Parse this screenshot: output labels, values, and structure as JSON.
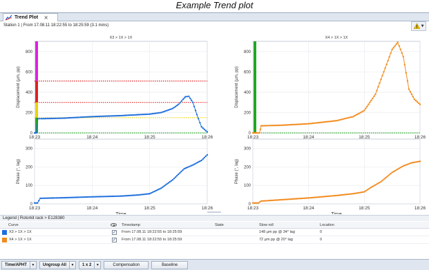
{
  "page_title": "Example Trend plot",
  "tab": {
    "label": "Trend Plot",
    "close": "×"
  },
  "header": {
    "station_text": "Station 1 | From 17.08.11 18:22:55 to 18:25:59 (3.1 mins)"
  },
  "colors": {
    "x3": "#1f6fdc",
    "x4": "#f28b1e",
    "threshold_red": "#e02020",
    "threshold_yellow": "#e8d400",
    "threshold_green": "#22a822"
  },
  "chart_data": [
    {
      "type": "line",
      "title": "X3 > 1X > 1X",
      "xlabel": "",
      "ylabel": "Displacement (µm, pp)",
      "xlim": [
        "18:23",
        "18:26"
      ],
      "ylim": [
        0,
        900
      ],
      "xticks": [
        "18:23",
        "18:24",
        "18:25",
        "18:26"
      ],
      "yticks": [
        "0",
        "200",
        "400",
        "600",
        "800"
      ],
      "series": [
        {
          "name": "X3 > 1X > 1X",
          "color": "#1f6fdc",
          "x": [
            0.0,
            0.03,
            0.06,
            0.12,
            0.5,
            1.0,
            1.5,
            2.0,
            2.2,
            2.4,
            2.5,
            2.58,
            2.62,
            2.68,
            2.75,
            2.82,
            2.9,
            3.0
          ],
          "y": [
            0,
            0,
            140,
            140,
            145,
            160,
            170,
            185,
            200,
            240,
            280,
            330,
            355,
            360,
            300,
            180,
            60,
            10
          ]
        }
      ],
      "thresholds": [
        {
          "value": 510,
          "color": "red"
        },
        {
          "value": 300,
          "color": "red"
        },
        {
          "value": 150,
          "color": "yellow"
        },
        {
          "value": 0,
          "color": "green"
        }
      ]
    },
    {
      "type": "line",
      "title": "X4 > 1X > 1X",
      "xlabel": "",
      "ylabel": "Displacement (µm, pp)",
      "xlim": [
        "18:23",
        "18:26"
      ],
      "ylim": [
        0,
        900
      ],
      "xticks": [
        "18:23",
        "18:24",
        "18:25",
        "18:26"
      ],
      "yticks": [
        "0",
        "200",
        "400",
        "600",
        "800"
      ],
      "series": [
        {
          "name": "X4 > 1X > 1X",
          "color": "#f28b1e",
          "x": [
            0.0,
            0.12,
            0.15,
            0.5,
            1.0,
            1.5,
            1.8,
            2.0,
            2.2,
            2.35,
            2.5,
            2.6,
            2.7,
            2.8,
            2.9,
            3.0
          ],
          "y": [
            0,
            0,
            70,
            75,
            90,
            120,
            160,
            220,
            380,
            600,
            820,
            890,
            750,
            430,
            330,
            280
          ]
        }
      ],
      "thresholds": [
        {
          "value": 0,
          "color": "green"
        }
      ]
    },
    {
      "type": "line",
      "title": "",
      "xlabel": "Time",
      "ylabel": "Phase (°, lag)",
      "xlim": [
        "18:23",
        "18:26"
      ],
      "ylim": [
        0,
        350
      ],
      "xticks": [
        "18:23",
        "18:24",
        "18:25",
        "18:26"
      ],
      "yticks": [
        "0",
        "100",
        "200",
        "300"
      ],
      "series": [
        {
          "name": "X3 > 1X > 1X",
          "color": "#1f6fdc",
          "x": [
            0.0,
            0.05,
            0.1,
            0.5,
            1.0,
            1.5,
            1.8,
            2.0,
            2.2,
            2.4,
            2.6,
            2.75,
            2.9,
            3.0
          ],
          "y": [
            5,
            5,
            30,
            33,
            38,
            42,
            48,
            55,
            85,
            130,
            190,
            210,
            235,
            265
          ]
        }
      ]
    },
    {
      "type": "line",
      "title": "",
      "xlabel": "Time",
      "ylabel": "Phase (°, lag)",
      "xlim": [
        "18:23",
        "18:26"
      ],
      "ylim": [
        0,
        350
      ],
      "xticks": [
        "18:23",
        "18:24",
        "18:25",
        "18:26"
      ],
      "yticks": [
        "0",
        "100",
        "200",
        "300"
      ],
      "series": [
        {
          "name": "X4 > 1X > 1X",
          "color": "#f28b1e",
          "x": [
            0.0,
            0.1,
            0.15,
            0.5,
            1.0,
            1.5,
            1.8,
            2.0,
            2.1,
            2.3,
            2.5,
            2.7,
            2.85,
            3.0
          ],
          "y": [
            5,
            5,
            15,
            22,
            32,
            45,
            55,
            65,
            85,
            120,
            170,
            205,
            222,
            230
          ]
        }
      ]
    }
  ],
  "legend": {
    "breadcrumb": "Legend | Rotorkit rack > E128380",
    "columns": [
      "Curve",
      "Timestamp",
      "State",
      "Slow roll",
      "Location"
    ],
    "rows": [
      {
        "color": "#1f6fdc",
        "curve": "X3 > 1X > 1X",
        "timestamp": "From 17.08.11 18:22:55 to 18:25:59",
        "state": "",
        "slow_roll": "148 µm pp @ 34° lag",
        "location": "0"
      },
      {
        "color": "#f28b1e",
        "curve": "X4 > 1X > 1X",
        "timestamp": "From 17.08.11 18:22:55 to 18:25:59",
        "state": "",
        "slow_roll": "72 µm pp @ 20° lag",
        "location": "0"
      }
    ]
  },
  "toolbar": {
    "time_aph": "Time/APHT",
    "ungroup": "Ungroup All",
    "layout": "1 x 2",
    "compensation": "Compensation",
    "baseline": "Baseline"
  }
}
